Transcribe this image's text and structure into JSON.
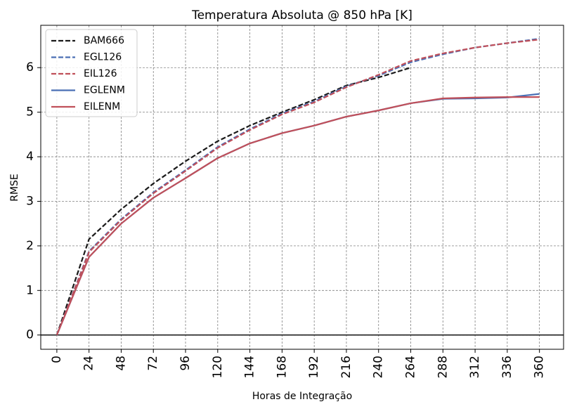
{
  "chart_data": {
    "type": "line",
    "title": "Temperatura Absoluta @ 850 hPa [K]",
    "xlabel": "Horas de Integração",
    "ylabel": "RMSE",
    "x": [
      0,
      24,
      48,
      72,
      96,
      120,
      144,
      168,
      192,
      216,
      240,
      264,
      288,
      312,
      336,
      360
    ],
    "xlim": [
      -12,
      378
    ],
    "ylim": [
      -0.32,
      6.95
    ],
    "xticks": [
      "0",
      "24",
      "48",
      "72",
      "96",
      "120",
      "144",
      "168",
      "192",
      "216",
      "240",
      "264",
      "288",
      "312",
      "336",
      "360"
    ],
    "yticks": [
      "0",
      "1",
      "2",
      "3",
      "4",
      "5",
      "6"
    ],
    "grid": true,
    "zero_line": true,
    "legend_position": "top-left",
    "series": [
      {
        "name": "BAM666",
        "color": "#1a1a1a",
        "style": "dashed",
        "values": [
          0,
          2.15,
          2.82,
          3.4,
          3.9,
          4.35,
          4.7,
          5.0,
          5.28,
          5.6,
          5.78,
          6.0,
          null,
          null,
          null,
          null
        ]
      },
      {
        "name": "EGL126",
        "color": "#4a6fb5",
        "style": "dashed",
        "values": [
          0,
          1.88,
          2.6,
          3.2,
          3.7,
          4.22,
          4.62,
          4.97,
          5.24,
          5.58,
          5.82,
          6.12,
          6.3,
          6.45,
          6.55,
          6.65
        ]
      },
      {
        "name": "EIL126",
        "color": "#c0505a",
        "style": "dashed",
        "values": [
          0,
          1.86,
          2.58,
          3.18,
          3.68,
          4.2,
          4.6,
          4.95,
          5.22,
          5.56,
          5.84,
          6.15,
          6.32,
          6.45,
          6.55,
          6.63
        ]
      },
      {
        "name": "EGLENM",
        "color": "#4a6fb5",
        "style": "solid",
        "values": [
          0,
          1.75,
          2.5,
          3.08,
          3.52,
          3.97,
          4.3,
          4.53,
          4.7,
          4.9,
          5.04,
          5.2,
          5.3,
          5.31,
          5.33,
          5.41
        ]
      },
      {
        "name": "EILENM",
        "color": "#c0505a",
        "style": "solid",
        "values": [
          0,
          1.75,
          2.5,
          3.08,
          3.52,
          3.97,
          4.3,
          4.53,
          4.7,
          4.9,
          5.04,
          5.2,
          5.31,
          5.33,
          5.34,
          5.34
        ]
      }
    ]
  }
}
